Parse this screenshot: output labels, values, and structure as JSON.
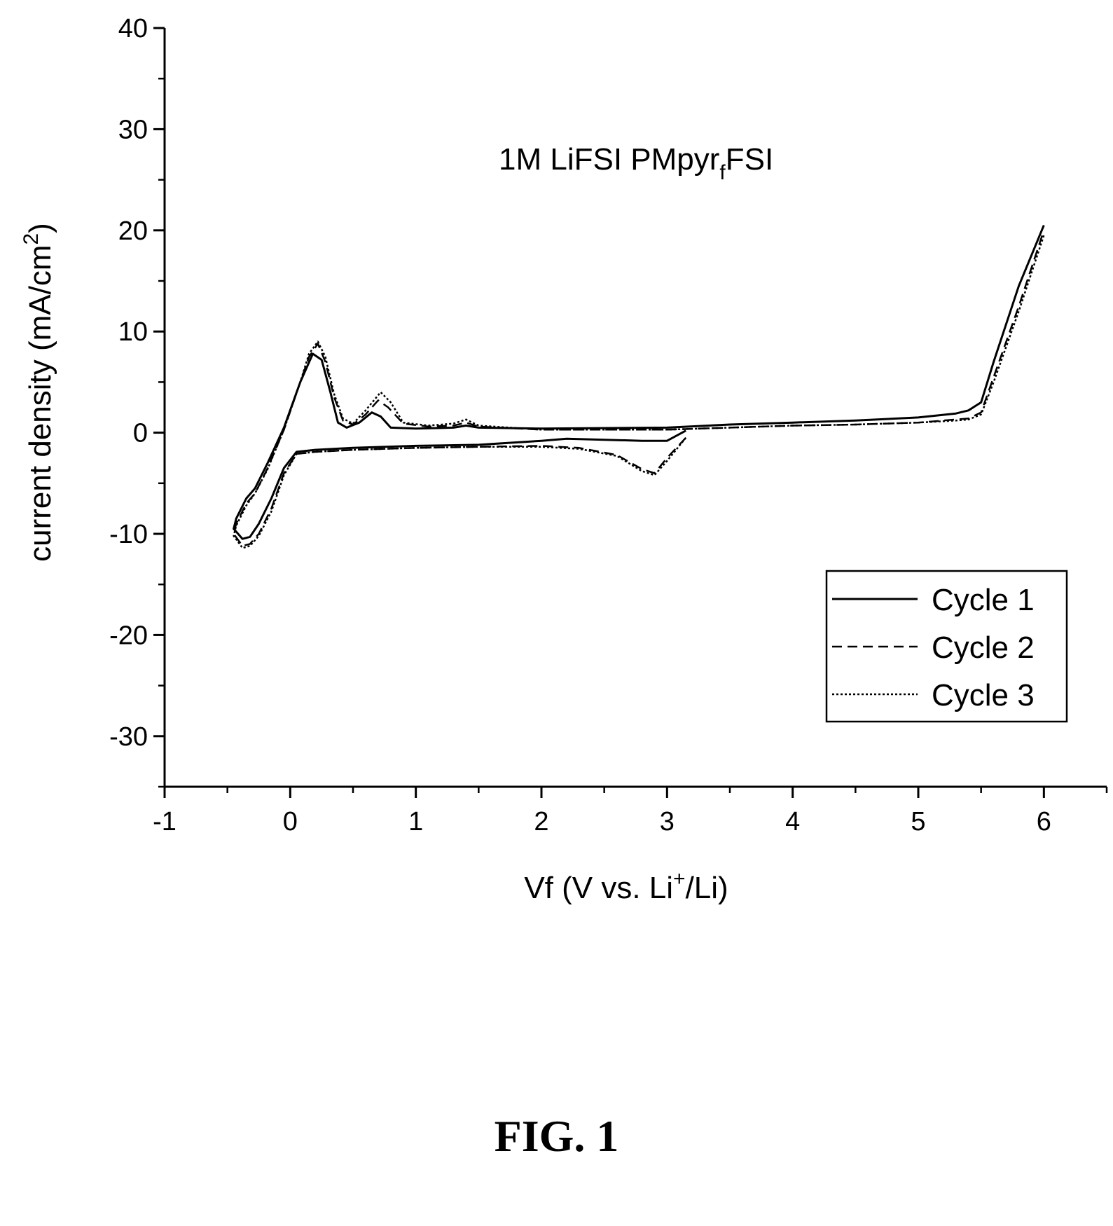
{
  "figure": {
    "caption": "FIG. 1"
  },
  "chart_data": {
    "type": "line",
    "annotation": {
      "main": "1M LiFSI PMpyr",
      "sub": "f",
      "tail": "FSI"
    },
    "xlabel": {
      "pre": "Vf (V vs. Li",
      "sup": "+",
      "post": "/Li)"
    },
    "ylabel": {
      "pre": "current density (mA/cm",
      "sup": "2",
      "post": ")"
    },
    "xlim": [
      -1,
      6.5
    ],
    "ylim": [
      -35,
      40
    ],
    "x_ticks": [
      -1,
      0,
      1,
      2,
      3,
      4,
      5,
      6
    ],
    "x_tick_labels": [
      "-1",
      "0",
      "1",
      "2",
      "3",
      "4",
      "5",
      "6"
    ],
    "y_ticks": [
      -30,
      -20,
      -10,
      0,
      10,
      20,
      30,
      40
    ],
    "y_tick_labels": [
      "-30",
      "-20",
      "-10",
      "0",
      "10",
      "20",
      "30",
      "40"
    ],
    "legend_position": "bottom-right",
    "series": [
      {
        "name": "Cycle 1",
        "style": "solid",
        "x": [
          3.15,
          3.0,
          2.8,
          2.5,
          2.2,
          2.0,
          1.5,
          1.0,
          0.5,
          0.2,
          0.05,
          -0.05,
          -0.15,
          -0.25,
          -0.32,
          -0.38,
          -0.45,
          -0.43,
          -0.35,
          -0.28,
          -0.18,
          -0.05,
          0.08,
          0.18,
          0.25,
          0.32,
          0.38,
          0.45,
          0.55,
          0.65,
          0.72,
          0.8,
          1.0,
          1.3,
          1.4,
          1.5,
          2.0,
          3.0,
          3.5,
          4.0,
          4.5,
          5.0,
          5.3,
          5.4,
          5.5,
          5.6,
          5.8,
          6.0
        ],
        "y": [
          0.2,
          -0.8,
          -0.8,
          -0.7,
          -0.6,
          -0.8,
          -1.2,
          -1.3,
          -1.5,
          -1.7,
          -1.9,
          -3.5,
          -6.5,
          -9.0,
          -10.3,
          -10.5,
          -9.5,
          -8.5,
          -6.5,
          -5.5,
          -3.0,
          0.5,
          5.0,
          7.8,
          7.2,
          4.0,
          1.0,
          0.5,
          1.0,
          2.0,
          1.6,
          0.5,
          0.4,
          0.5,
          0.7,
          0.5,
          0.4,
          0.5,
          0.8,
          1.0,
          1.2,
          1.5,
          1.9,
          2.2,
          3.0,
          7.0,
          14.5,
          20.5
        ]
      },
      {
        "name": "Cycle 2",
        "style": "dashed",
        "x": [
          3.15,
          3.0,
          2.9,
          2.8,
          2.6,
          2.3,
          2.0,
          1.5,
          1.0,
          0.5,
          0.2,
          0.05,
          -0.05,
          -0.15,
          -0.25,
          -0.32,
          -0.38,
          -0.45,
          -0.43,
          -0.35,
          -0.28,
          -0.18,
          -0.05,
          0.08,
          0.15,
          0.22,
          0.28,
          0.35,
          0.42,
          0.5,
          0.6,
          0.7,
          0.78,
          0.9,
          1.1,
          1.3,
          1.4,
          1.5,
          2.0,
          3.0,
          3.5,
          4.0,
          4.5,
          5.0,
          5.3,
          5.4,
          5.5,
          5.6,
          5.8,
          6.0
        ],
        "y": [
          -0.5,
          -2.5,
          -4.0,
          -3.6,
          -2.2,
          -1.5,
          -1.3,
          -1.4,
          -1.5,
          -1.7,
          -1.9,
          -2.1,
          -4.0,
          -7.5,
          -10.0,
          -11.0,
          -11.2,
          -10.0,
          -9.0,
          -7.0,
          -6.0,
          -3.5,
          0.3,
          5.0,
          7.5,
          8.8,
          7.0,
          3.5,
          1.2,
          0.8,
          1.8,
          3.2,
          2.5,
          0.9,
          0.6,
          0.7,
          1.0,
          0.6,
          0.3,
          0.3,
          0.5,
          0.7,
          0.8,
          1.0,
          1.3,
          1.4,
          2.0,
          5.5,
          12.5,
          20.0
        ]
      },
      {
        "name": "Cycle 3",
        "style": "dotted",
        "x": [
          3.15,
          3.0,
          2.9,
          2.8,
          2.6,
          2.3,
          2.0,
          1.5,
          1.0,
          0.5,
          0.2,
          0.05,
          -0.05,
          -0.15,
          -0.25,
          -0.32,
          -0.38,
          -0.45,
          -0.43,
          -0.35,
          -0.28,
          -0.18,
          -0.05,
          0.08,
          0.15,
          0.22,
          0.28,
          0.35,
          0.42,
          0.5,
          0.6,
          0.72,
          0.8,
          0.9,
          1.1,
          1.3,
          1.4,
          1.5,
          2.0,
          3.0,
          3.5,
          4.0,
          4.5,
          5.0,
          5.3,
          5.4,
          5.5,
          5.6,
          5.8,
          6.0
        ],
        "y": [
          -0.5,
          -2.8,
          -4.2,
          -3.8,
          -2.3,
          -1.6,
          -1.4,
          -1.4,
          -1.5,
          -1.7,
          -1.9,
          -2.1,
          -4.2,
          -7.8,
          -10.2,
          -11.2,
          -11.4,
          -10.2,
          -9.2,
          -7.2,
          -6.0,
          -3.6,
          0.3,
          5.0,
          7.8,
          9.0,
          7.5,
          3.8,
          1.4,
          0.9,
          2.2,
          4.0,
          3.0,
          1.0,
          0.7,
          0.9,
          1.3,
          0.7,
          0.3,
          0.3,
          0.5,
          0.7,
          0.8,
          1.0,
          1.2,
          1.3,
          1.8,
          5.0,
          12.0,
          19.5
        ]
      }
    ]
  }
}
